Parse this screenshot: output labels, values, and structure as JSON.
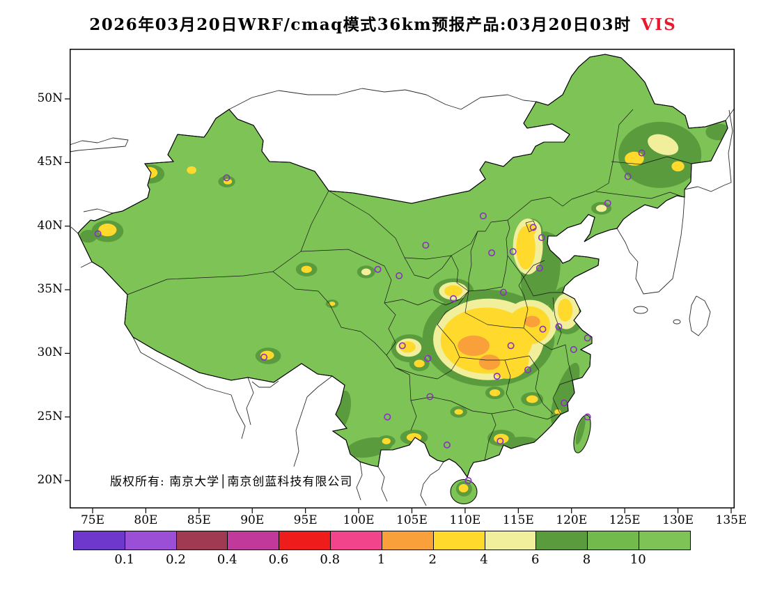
{
  "title": {
    "text": "2026年03月20日WRF/cmaq模式36km预报产品:03月20日03时",
    "variable": "VIS"
  },
  "copyright": "版权所有: 南京大学│南京创蓝科技有限公司",
  "chart_data": {
    "type": "heatmap",
    "title": "2026年03月20日WRF/cmaq模式36km预报产品:03月20日03时 VIS",
    "variable": "VIS",
    "x_ticks": [
      "75E",
      "80E",
      "85E",
      "90E",
      "95E",
      "100E",
      "105E",
      "110E",
      "115E",
      "120E",
      "125E",
      "130E",
      "135E"
    ],
    "y_ticks": [
      "20N",
      "25N",
      "30N",
      "35N",
      "40N",
      "45N",
      "50N"
    ],
    "lon_range": [
      72.8,
      135.3
    ],
    "lat_range": [
      17.8,
      53.9
    ],
    "grid": false,
    "legend_position": "bottom",
    "colorbar": {
      "labels": [
        "0.1",
        "0.2",
        "0.4",
        "0.6",
        "0.8",
        "1",
        "2",
        "4",
        "6",
        "8",
        "10"
      ],
      "colors": [
        "#6f38cc",
        "#9b4fd6",
        "#a03a52",
        "#c0399b",
        "#ef1c1c",
        "#f2448a",
        "#f9a03a",
        "#ffd92b",
        "#f1ef9b",
        "#5a9b3e",
        "#73ba4c",
        "#7dc355"
      ]
    },
    "marker_color": "#8b2fc0",
    "city_markers": [
      [
        126.6,
        45.75
      ],
      [
        125.3,
        43.9
      ],
      [
        123.4,
        41.8
      ],
      [
        116.4,
        39.9
      ],
      [
        117.2,
        39.1
      ],
      [
        114.5,
        38.0
      ],
      [
        111.7,
        40.8
      ],
      [
        112.5,
        37.9
      ],
      [
        117.0,
        36.7
      ],
      [
        106.3,
        38.5
      ],
      [
        103.8,
        36.1
      ],
      [
        101.8,
        36.6
      ],
      [
        87.6,
        43.8
      ],
      [
        75.5,
        39.4
      ],
      [
        108.9,
        34.3
      ],
      [
        113.6,
        34.8
      ],
      [
        118.8,
        32.1
      ],
      [
        117.3,
        31.9
      ],
      [
        121.5,
        31.2
      ],
      [
        120.2,
        30.3
      ],
      [
        114.3,
        30.6
      ],
      [
        113.0,
        28.2
      ],
      [
        115.9,
        28.7
      ],
      [
        119.3,
        26.1
      ],
      [
        121.5,
        25.0
      ],
      [
        104.1,
        30.6
      ],
      [
        106.5,
        29.6
      ],
      [
        106.7,
        26.6
      ],
      [
        102.7,
        25.0
      ],
      [
        108.3,
        22.8
      ],
      [
        113.3,
        23.1
      ],
      [
        110.3,
        20.0
      ],
      [
        91.1,
        29.7
      ]
    ],
    "vis_regions_columns": [
      "level",
      "lon",
      "lat",
      "rx_deg",
      "ry_deg",
      "rotation_deg"
    ],
    "vis_regions": [
      [
        "6-8",
        112.2,
        31.2,
        6.2,
        3.8,
        0
      ],
      [
        "6-8",
        117.1,
        36.4,
        1.8,
        3.2,
        8
      ],
      [
        "6-8",
        119.6,
        33.4,
        1.8,
        1.9,
        0
      ],
      [
        "6-8",
        116.2,
        39.6,
        1.1,
        1.0,
        0
      ],
      [
        "6-8",
        117.6,
        38.9,
        1.15,
        0.6,
        0
      ],
      [
        "6-8",
        108.9,
        34.9,
        1.9,
        1.0,
        0
      ],
      [
        "6-8",
        104.8,
        30.4,
        1.75,
        1.1,
        0
      ],
      [
        "6-8",
        105.7,
        29.2,
        0.95,
        0.6,
        0
      ],
      [
        "6-8",
        128.3,
        45.6,
        3.9,
        2.6,
        0
      ],
      [
        "6-8",
        133.8,
        47.4,
        1.2,
        0.65,
        0
      ],
      [
        "6-8",
        122.8,
        41.4,
        0.95,
        0.5,
        0
      ],
      [
        "6-8",
        80.4,
        44.1,
        1.35,
        0.75,
        0
      ],
      [
        "6-8",
        76.4,
        39.6,
        1.5,
        0.85,
        0
      ],
      [
        "6-8",
        87.6,
        43.5,
        0.8,
        0.45,
        0
      ],
      [
        "6-8",
        95.1,
        36.6,
        1.0,
        0.55,
        0
      ],
      [
        "6-8",
        100.7,
        36.4,
        0.85,
        0.5,
        0
      ],
      [
        "6-8",
        97.5,
        33.9,
        0.6,
        0.33,
        0
      ],
      [
        "6-8",
        91.5,
        29.8,
        1.2,
        0.65,
        0
      ],
      [
        "6-8",
        105.2,
        23.4,
        1.3,
        0.6,
        0
      ],
      [
        "6-8",
        102.6,
        23.1,
        0.85,
        0.45,
        0
      ],
      [
        "6-8",
        113.4,
        23.35,
        1.3,
        0.65,
        0
      ],
      [
        "6-8",
        116.3,
        26.4,
        1.05,
        0.55,
        0
      ],
      [
        "6-8",
        118.7,
        25.4,
        0.65,
        0.4,
        0
      ],
      [
        "6-8",
        112.8,
        26.9,
        0.9,
        0.5,
        0
      ],
      [
        "6-8",
        109.4,
        25.4,
        0.8,
        0.45,
        0
      ],
      [
        "6-8",
        119.4,
        26.8,
        0.9,
        2.6,
        20
      ],
      [
        "6-8",
        115.4,
        22.9,
        1.7,
        0.55,
        0
      ],
      [
        "6-8",
        101.0,
        22.6,
        2.2,
        0.75,
        -10
      ],
      [
        "6-8",
        98.4,
        25.5,
        0.8,
        1.6,
        12
      ],
      [
        "6-8",
        74.6,
        39.2,
        0.8,
        0.5,
        0
      ],
      [
        "6-8",
        109.9,
        19.35,
        0.75,
        0.6,
        0
      ],
      [
        "6-8",
        120.85,
        23.9,
        0.3,
        1.1,
        15
      ],
      [
        "4-6",
        112.2,
        31.1,
        5.2,
        3.2,
        0
      ],
      [
        "4-6",
        116.1,
        32.3,
        2.5,
        1.9,
        0
      ],
      [
        "4-6",
        115.9,
        38.4,
        1.4,
        2.2,
        0
      ],
      [
        "4-6",
        116.2,
        39.6,
        0.95,
        0.9,
        0
      ],
      [
        "4-6",
        119.5,
        33.3,
        1.2,
        1.4,
        0
      ],
      [
        "4-6",
        108.9,
        34.9,
        1.35,
        0.7,
        0
      ],
      [
        "4-6",
        104.7,
        30.45,
        1.2,
        0.72,
        0
      ],
      [
        "4-6",
        128.6,
        46.4,
        1.5,
        0.75,
        20
      ],
      [
        "4-6",
        122.8,
        41.4,
        0.5,
        0.28,
        0
      ],
      [
        "4-6",
        80.3,
        44.2,
        0.35,
        0.2,
        0
      ],
      [
        "4-6",
        100.7,
        36.4,
        0.45,
        0.27,
        0
      ],
      [
        "2-4",
        112.0,
        31.0,
        4.3,
        2.6,
        0
      ],
      [
        "2-4",
        114.0,
        29.5,
        2.0,
        1.5,
        0
      ],
      [
        "2-4",
        116.0,
        32.2,
        2.0,
        1.5,
        0
      ],
      [
        "2-4",
        115.7,
        38.3,
        0.9,
        1.7,
        0
      ],
      [
        "2-4",
        116.1,
        39.7,
        0.55,
        0.5,
        0
      ],
      [
        "2-4",
        119.4,
        33.4,
        0.7,
        0.9,
        0
      ],
      [
        "2-4",
        108.9,
        34.9,
        0.85,
        0.45,
        0
      ],
      [
        "2-4",
        104.6,
        30.5,
        0.75,
        0.45,
        0
      ],
      [
        "2-4",
        105.7,
        29.2,
        0.5,
        0.3,
        0
      ],
      [
        "2-4",
        125.9,
        45.3,
        0.9,
        0.55,
        0
      ],
      [
        "2-4",
        130.0,
        44.7,
        0.6,
        0.4,
        0
      ],
      [
        "2-4",
        80.3,
        44.2,
        0.8,
        0.45,
        0
      ],
      [
        "2-4",
        76.4,
        39.7,
        0.85,
        0.5,
        0
      ],
      [
        "2-4",
        87.7,
        43.5,
        0.4,
        0.22,
        0
      ],
      [
        "2-4",
        84.3,
        44.4,
        0.45,
        0.3,
        0
      ],
      [
        "2-4",
        95.1,
        36.6,
        0.5,
        0.28,
        0
      ],
      [
        "2-4",
        97.5,
        33.9,
        0.3,
        0.17,
        0
      ],
      [
        "2-4",
        91.4,
        29.85,
        0.65,
        0.35,
        0
      ],
      [
        "2-4",
        105.2,
        23.4,
        0.7,
        0.33,
        0
      ],
      [
        "2-4",
        102.6,
        23.1,
        0.4,
        0.25,
        0
      ],
      [
        "2-4",
        113.4,
        23.3,
        0.7,
        0.38,
        0
      ],
      [
        "2-4",
        116.3,
        26.4,
        0.55,
        0.3,
        0
      ],
      [
        "2-4",
        118.7,
        25.4,
        0.3,
        0.2,
        0
      ],
      [
        "2-4",
        112.8,
        26.9,
        0.5,
        0.27,
        0
      ],
      [
        "2-4",
        109.4,
        25.4,
        0.4,
        0.22,
        0
      ],
      [
        "2-4",
        109.85,
        19.4,
        0.45,
        0.33,
        0
      ],
      [
        "1-2",
        110.8,
        30.6,
        1.5,
        0.8,
        0
      ],
      [
        "1-2",
        112.3,
        29.3,
        1.0,
        0.6,
        0
      ],
      [
        "1-2",
        116.3,
        32.5,
        0.75,
        0.45,
        0
      ]
    ]
  }
}
